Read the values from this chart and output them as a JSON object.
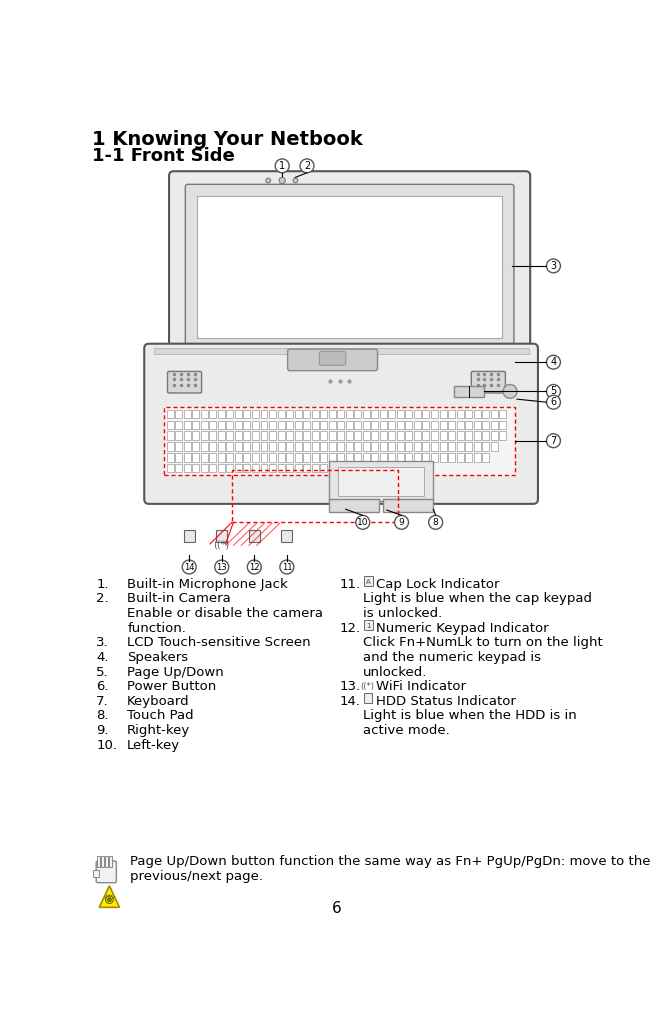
{
  "title1": "1 Knowing Your Netbook",
  "title2": "1-1 Front Side",
  "title1_fontsize": 14,
  "title2_fontsize": 13,
  "body_fontsize": 9.5,
  "left_col_nums": [
    "1.",
    "2.",
    "",
    "",
    "3.",
    "4.",
    "5.",
    "6.",
    "7.",
    "8.",
    "9.",
    "10."
  ],
  "left_col_text": [
    "Built-in Microphone Jack",
    "Built-in Camera",
    "Enable or disable the camera",
    "function.",
    "LCD Touch-sensitive Screen",
    "Speakers",
    "Page Up/Down",
    "Power Button",
    "Keyboard",
    "Touch Pad",
    "Right-key",
    "Left-key"
  ],
  "right_col_nums": [
    "11.",
    "",
    "",
    "12.",
    "",
    "",
    "",
    "13.",
    "14.",
    "",
    ""
  ],
  "right_col_text": [
    "Cap Lock Indicator",
    "Light is blue when the cap keypad",
    "is unlocked.",
    "Numeric Keypad Indicator",
    "Click Fn+NumLk to turn on the light",
    "and the numeric keypad is",
    "unlocked.",
    "WiFi Indicator",
    "HDD Status Indicator",
    "Light is blue when the HDD is in",
    "active mode."
  ],
  "right_col_has_icon": [
    true,
    false,
    false,
    true,
    false,
    false,
    false,
    true,
    true,
    false,
    false
  ],
  "footer_text1": "Page Up/Down button function the same way as Fn+ PgUp/PgDn: move to the",
  "footer_text2": "previous/next page.",
  "page_number": "6",
  "bg_color": "#ffffff",
  "text_color": "#000000"
}
